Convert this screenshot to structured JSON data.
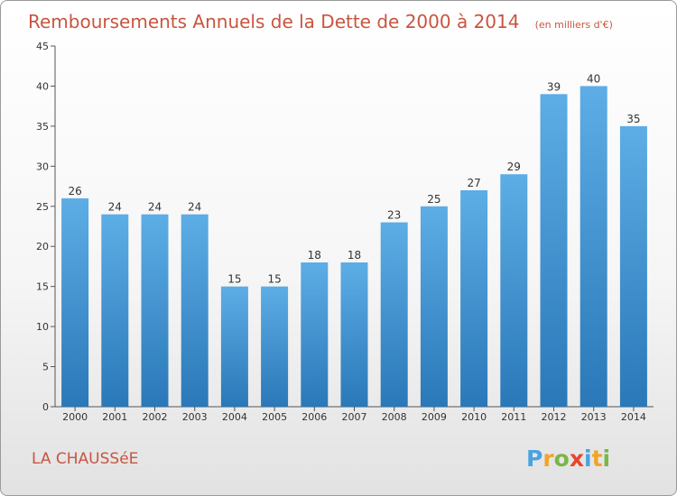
{
  "chart_data": {
    "type": "bar",
    "title": "Remboursements Annuels de la Dette de 2000 à 2014",
    "unit": "(en milliers d'€)",
    "categories": [
      "2000",
      "2001",
      "2002",
      "2003",
      "2004",
      "2005",
      "2006",
      "2007",
      "2008",
      "2009",
      "2010",
      "2011",
      "2012",
      "2013",
      "2014"
    ],
    "values": [
      26,
      24,
      24,
      24,
      15,
      15,
      18,
      18,
      23,
      25,
      27,
      29,
      39,
      40,
      35
    ],
    "ylim": [
      0,
      45
    ],
    "yticks": [
      0,
      5,
      10,
      15,
      20,
      25,
      30,
      35,
      40,
      45
    ],
    "xlabel": "",
    "ylabel": "",
    "grid": false,
    "bar_color": "#3f96d8"
  },
  "footer": {
    "place": "LA CHAUSSéE",
    "logo_letters": [
      "P",
      "r",
      "o",
      "x",
      "i",
      "t",
      "i"
    ],
    "logo_colors": [
      "#4aa3df",
      "#f0a42a",
      "#7ab648",
      "#e8452c",
      "#4aa3df",
      "#f0a42a",
      "#7ab648"
    ]
  }
}
